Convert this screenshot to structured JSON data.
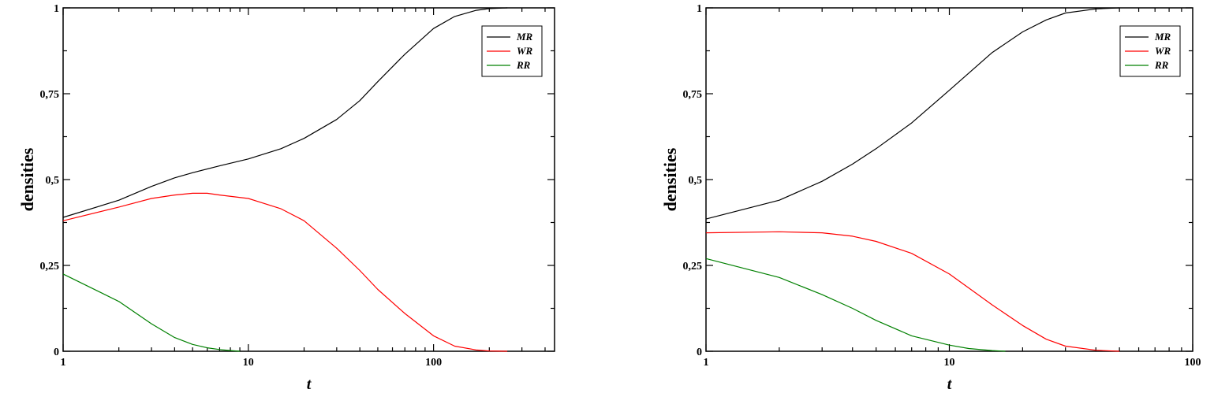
{
  "chart_data": [
    {
      "type": "line",
      "xlabel": "t",
      "ylabel": "densities",
      "xscale": "log",
      "xlim": [
        1,
        450
      ],
      "ylim": [
        0,
        1
      ],
      "xticks": [
        1,
        10,
        100
      ],
      "xtick_labels": [
        "1",
        "10",
        "100"
      ],
      "yticks": [
        0,
        0.25,
        0.5,
        0.75,
        1
      ],
      "ytick_labels": [
        "0",
        "0,25",
        "0,5",
        "0,75",
        "1"
      ],
      "grid": false,
      "legend_position": "top-right",
      "series": [
        {
          "name": "MR",
          "color": "#000000",
          "x": [
            1,
            2,
            3,
            4,
            5,
            7,
            10,
            15,
            20,
            30,
            40,
            50,
            70,
            100,
            130,
            170,
            200,
            250
          ],
          "y": [
            0.39,
            0.44,
            0.48,
            0.505,
            0.52,
            0.54,
            0.56,
            0.59,
            0.62,
            0.675,
            0.73,
            0.785,
            0.865,
            0.94,
            0.975,
            0.993,
            0.998,
            1.0
          ]
        },
        {
          "name": "WR",
          "color": "#ff0000",
          "x": [
            1,
            2,
            3,
            4,
            5,
            6,
            7,
            10,
            15,
            20,
            30,
            40,
            50,
            70,
            100,
            130,
            170,
            200,
            250
          ],
          "y": [
            0.38,
            0.42,
            0.445,
            0.455,
            0.46,
            0.46,
            0.455,
            0.445,
            0.415,
            0.38,
            0.3,
            0.235,
            0.18,
            0.11,
            0.045,
            0.015,
            0.004,
            0.001,
            0.0
          ]
        },
        {
          "name": "RR",
          "color": "#008000",
          "x": [
            1,
            2,
            3,
            4,
            5,
            6,
            7,
            8,
            9
          ],
          "y": [
            0.225,
            0.145,
            0.08,
            0.04,
            0.02,
            0.01,
            0.005,
            0.002,
            0.0
          ]
        }
      ]
    },
    {
      "type": "line",
      "xlabel": "t",
      "ylabel": "densities",
      "xscale": "log",
      "xlim": [
        1,
        100
      ],
      "ylim": [
        0,
        1
      ],
      "xticks": [
        1,
        10,
        100
      ],
      "xtick_labels": [
        "1",
        "10",
        "100"
      ],
      "yticks": [
        0,
        0.25,
        0.5,
        0.75,
        1
      ],
      "ytick_labels": [
        "0",
        "0,25",
        "0,5",
        "0,75",
        "1"
      ],
      "grid": false,
      "legend_position": "top-right",
      "series": [
        {
          "name": "MR",
          "color": "#000000",
          "x": [
            1,
            2,
            3,
            4,
            5,
            7,
            10,
            15,
            20,
            25,
            30,
            40,
            50
          ],
          "y": [
            0.385,
            0.44,
            0.495,
            0.545,
            0.59,
            0.665,
            0.76,
            0.87,
            0.93,
            0.965,
            0.985,
            0.997,
            1.0
          ]
        },
        {
          "name": "WR",
          "color": "#ff0000",
          "x": [
            1,
            2,
            3,
            4,
            5,
            7,
            10,
            15,
            20,
            25,
            30,
            40,
            50
          ],
          "y": [
            0.345,
            0.348,
            0.345,
            0.335,
            0.32,
            0.285,
            0.225,
            0.135,
            0.075,
            0.035,
            0.015,
            0.003,
            0.0
          ]
        },
        {
          "name": "RR",
          "color": "#008000",
          "x": [
            1,
            2,
            3,
            4,
            5,
            7,
            10,
            12,
            15,
            17
          ],
          "y": [
            0.27,
            0.215,
            0.165,
            0.125,
            0.09,
            0.045,
            0.018,
            0.008,
            0.002,
            0.0
          ]
        }
      ]
    }
  ]
}
